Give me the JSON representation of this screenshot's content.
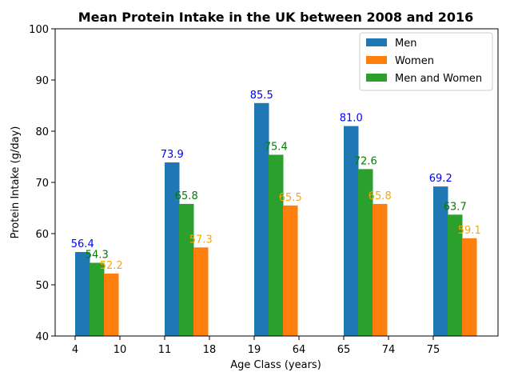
{
  "chart_data": {
    "type": "bar",
    "title": "Mean Protein Intake in the UK between 2008 and 2016",
    "xlabel": "Age Class (years)",
    "ylabel": "Protein Intake (g/day)",
    "ylim": [
      40,
      100
    ],
    "yticks": [
      40,
      50,
      60,
      70,
      80,
      90,
      100
    ],
    "xtick_labels": [
      "4",
      "10",
      "11",
      "18",
      "19",
      "64",
      "65",
      "74",
      "75"
    ],
    "groups": 5,
    "series": [
      {
        "name": "Men",
        "color": "#1f77b4",
        "label_color": "#0000ff",
        "values": [
          56.4,
          73.9,
          85.5,
          81.0,
          69.2
        ],
        "labels": [
          "56.4",
          "73.9",
          "85.5",
          "81.0",
          "69.2"
        ]
      },
      {
        "name": "Women",
        "color": "#ff7f0e",
        "label_color": "#ffa500",
        "values": [
          52.2,
          57.3,
          65.5,
          65.8,
          59.1
        ],
        "labels": [
          "52.2",
          "57.3",
          "65.5",
          "65.8",
          "59.1"
        ]
      },
      {
        "name": "Men and Women",
        "color": "#2ca02c",
        "label_color": "#008000",
        "values": [
          54.3,
          65.8,
          75.4,
          72.6,
          63.7
        ],
        "labels": [
          "54.3",
          "65.8",
          "75.4",
          "72.6",
          "63.7"
        ]
      }
    ],
    "legend_position": "top-right",
    "grid": false
  }
}
